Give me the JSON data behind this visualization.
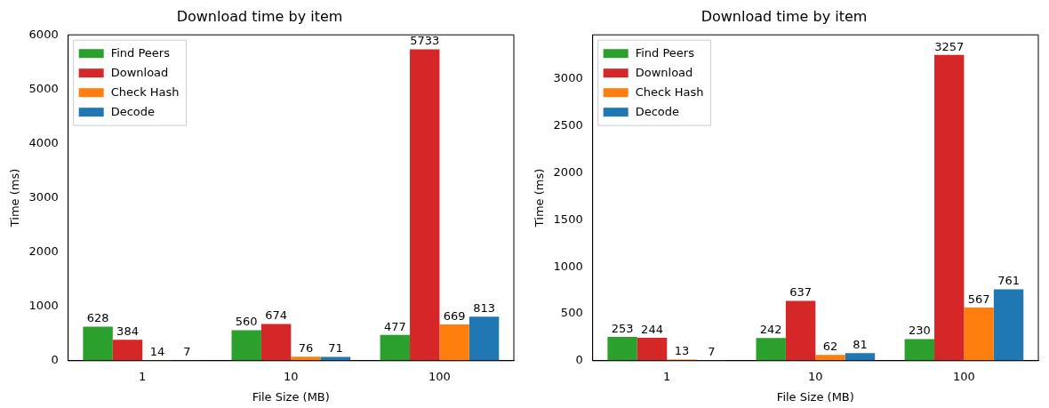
{
  "chart_data": [
    {
      "type": "bar",
      "title": "Download time by item",
      "xlabel": "File Size (MB)",
      "ylabel": "Time (ms)",
      "categories": [
        "1",
        "10",
        "100"
      ],
      "series": [
        {
          "name": "Find Peers",
          "color": "#2ca02c",
          "values": [
            628,
            560,
            477
          ]
        },
        {
          "name": "Download",
          "color": "#d62728",
          "values": [
            384,
            674,
            5733
          ]
        },
        {
          "name": "Check Hash",
          "color": "#ff7f0e",
          "values": [
            14,
            76,
            669
          ]
        },
        {
          "name": "Decode",
          "color": "#1f77b4",
          "values": [
            7,
            71,
            813
          ]
        }
      ],
      "ylim": [
        0,
        6000
      ],
      "yticks": [
        0,
        1000,
        2000,
        3000,
        4000,
        5000,
        6000
      ],
      "grid": false,
      "legend": "top left",
      "data_labels": true
    },
    {
      "type": "bar",
      "title": "Download time by item",
      "xlabel": "File Size (MB)",
      "ylabel": "Time (ms)",
      "categories": [
        "1",
        "10",
        "100"
      ],
      "series": [
        {
          "name": "Find Peers",
          "color": "#2ca02c",
          "values": [
            253,
            242,
            230
          ]
        },
        {
          "name": "Download",
          "color": "#d62728",
          "values": [
            244,
            637,
            3257
          ]
        },
        {
          "name": "Check Hash",
          "color": "#ff7f0e",
          "values": [
            13,
            62,
            567
          ]
        },
        {
          "name": "Decode",
          "color": "#1f77b4",
          "values": [
            7,
            81,
            761
          ]
        }
      ],
      "ylim": [
        0,
        3470
      ],
      "yticks": [
        0,
        500,
        1000,
        1500,
        2000,
        2500,
        3000
      ],
      "grid": false,
      "legend": "top left",
      "data_labels": true
    }
  ]
}
